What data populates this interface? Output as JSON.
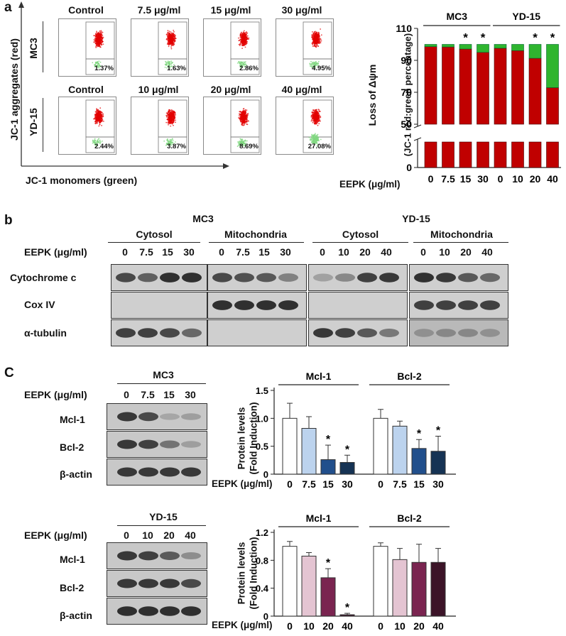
{
  "panel_a": {
    "label": "a",
    "y_axis_label": "JC-1 aggregates (red)",
    "x_axis_label": "JC-1 monomers (green)",
    "rows": [
      {
        "cell_line": "MC3",
        "conditions": [
          "Control",
          "7.5 μg/ml",
          "15 μg/ml",
          "30 μg/ml"
        ],
        "percentages": [
          "1.37%",
          "1.63%",
          "2.86%",
          "4.95%"
        ],
        "green_fraction": [
          0.0137,
          0.0163,
          0.0286,
          0.0495
        ]
      },
      {
        "cell_line": "YD-15",
        "conditions": [
          "Control",
          "10 μg/ml",
          "20 μg/ml",
          "40 μg/ml"
        ],
        "percentages": [
          "2.44%",
          "3.87%",
          "8.69%",
          "27.08%"
        ],
        "green_fraction": [
          0.0244,
          0.0387,
          0.0869,
          0.2708
        ]
      }
    ]
  },
  "panel_b": {
    "label": "b",
    "dose_label": "EEPK (μg/ml)",
    "groups": [
      {
        "cell_line": "MC3",
        "fractions": [
          "Cytosol",
          "Mitochondria"
        ],
        "doses": [
          "0",
          "7.5",
          "15",
          "30"
        ]
      },
      {
        "cell_line": "YD-15",
        "fractions": [
          "Cytosol",
          "Mitochondria"
        ],
        "doses": [
          "0",
          "10",
          "20",
          "40"
        ]
      }
    ],
    "proteins": [
      "Cytochrome c",
      "Cox IV",
      "α-tubulin"
    ]
  },
  "panel_c": {
    "label": "C",
    "dose_label": "EEPK (μg/ml)",
    "blots": [
      {
        "cell_line": "MC3",
        "doses": [
          "0",
          "7.5",
          "15",
          "30"
        ],
        "proteins": [
          "Mcl-1",
          "Bcl-2",
          "β-actin"
        ]
      },
      {
        "cell_line": "YD-15",
        "doses": [
          "0",
          "10",
          "20",
          "40"
        ],
        "proteins": [
          "Mcl-1",
          "Bcl-2",
          "β-actin"
        ]
      }
    ]
  },
  "chart_data": [
    {
      "type": "bar",
      "stacked": true,
      "ylabel": "Loss of Δψm",
      "ylabel2": "(JC-1 red:green percentage)",
      "xlabel": "EEPK (μg/ml)",
      "groups": [
        "MC3",
        "YD-15"
      ],
      "categories": [
        "0",
        "7.5",
        "15",
        "30",
        "0",
        "10",
        "20",
        "40"
      ],
      "yticks": [
        "0",
        "50",
        "70",
        "90",
        "110"
      ],
      "ylim": [
        50,
        110
      ],
      "axis_break": true,
      "series": [
        {
          "name": "red",
          "color": "#c00000",
          "values": [
            98.6,
            98.4,
            97.1,
            95.0,
            97.6,
            96.1,
            91.3,
            72.9
          ]
        },
        {
          "name": "green",
          "color": "#2fb52f",
          "values": [
            1.4,
            1.6,
            2.9,
            5.0,
            2.4,
            3.9,
            8.7,
            27.1
          ]
        }
      ],
      "significance": [
        "",
        "",
        "*",
        "*",
        "",
        "",
        "*",
        "*"
      ]
    },
    {
      "type": "bar",
      "ylabel": "Protein levels",
      "ylabel2": "(Fold Induction)",
      "xlabel": "EEPK (μg/ml)",
      "groups": [
        "Mcl-1",
        "Bcl-2"
      ],
      "categories": [
        "0",
        "7.5",
        "15",
        "30"
      ],
      "yticks": [
        "0",
        "0.5",
        "1.0",
        "1.5"
      ],
      "ylim": [
        0,
        1.5
      ],
      "colors": [
        "#ffffff",
        "#bcd3ee",
        "#214f8c",
        "#163354"
      ],
      "series": [
        {
          "name": "Mcl-1",
          "values": [
            1.0,
            0.82,
            0.26,
            0.21
          ],
          "errors": [
            0.27,
            0.21,
            0.26,
            0.13
          ]
        },
        {
          "name": "Bcl-2",
          "values": [
            1.0,
            0.86,
            0.46,
            0.41
          ],
          "errors": [
            0.16,
            0.09,
            0.16,
            0.27
          ]
        }
      ],
      "significance": [
        [
          "",
          "",
          "*",
          "*"
        ],
        [
          "",
          "",
          "*",
          "*"
        ]
      ]
    },
    {
      "type": "bar",
      "ylabel": "Protein levels",
      "ylabel2": "(Fold Induction)",
      "xlabel": "EEPK (μg/ml)",
      "groups": [
        "Mcl-1",
        "Bcl-2"
      ],
      "categories": [
        "0",
        "10",
        "20",
        "40"
      ],
      "yticks": [
        "0",
        "0.4",
        "0.8",
        "1.2"
      ],
      "ylim": [
        0,
        1.2
      ],
      "colors": [
        "#ffffff",
        "#e4c4d2",
        "#7a2450",
        "#3c1428"
      ],
      "series": [
        {
          "name": "Mcl-1",
          "values": [
            1.0,
            0.86,
            0.55,
            0.02
          ],
          "errors": [
            0.07,
            0.05,
            0.13,
            0.02
          ]
        },
        {
          "name": "Bcl-2",
          "values": [
            1.0,
            0.81,
            0.77,
            0.77
          ],
          "errors": [
            0.05,
            0.16,
            0.26,
            0.2
          ]
        }
      ],
      "significance": [
        [
          "",
          "",
          "*",
          "*"
        ],
        [
          "",
          "",
          "",
          ""
        ]
      ]
    }
  ]
}
